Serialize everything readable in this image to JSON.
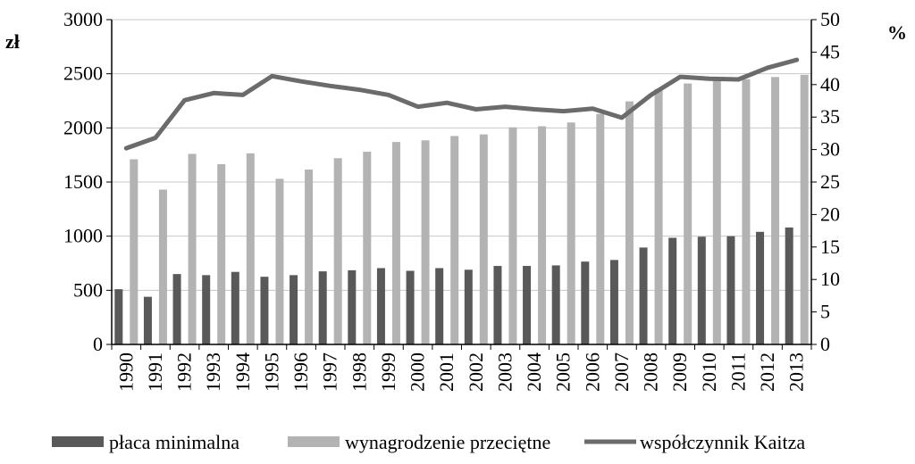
{
  "chart_data": {
    "type": "bar",
    "categories": [
      "1990",
      "1991",
      "1992",
      "1993",
      "1994",
      "1995",
      "1996",
      "1997",
      "1998",
      "1999",
      "2000",
      "2001",
      "2002",
      "2003",
      "2004",
      "2005",
      "2006",
      "2007",
      "2008",
      "2009",
      "2010",
      "2011",
      "2012",
      "2013"
    ],
    "series": [
      {
        "name": "płaca minimalna",
        "axis": "left",
        "kind": "bar",
        "color": "#595959",
        "values": [
          510,
          440,
          650,
          640,
          670,
          625,
          640,
          675,
          685,
          705,
          680,
          705,
          690,
          725,
          725,
          730,
          765,
          780,
          895,
          985,
          995,
          1000,
          1040,
          1080
        ]
      },
      {
        "name": "wynagrodzenie przeciętne",
        "axis": "left",
        "kind": "bar",
        "color": "#b3b3b3",
        "values": [
          1710,
          1430,
          1760,
          1665,
          1765,
          1530,
          1615,
          1720,
          1780,
          1870,
          1885,
          1925,
          1940,
          2005,
          2015,
          2050,
          2130,
          2245,
          2360,
          2410,
          2440,
          2450,
          2470,
          2490
        ]
      },
      {
        "name": "współczynnik Kaitza",
        "axis": "right",
        "kind": "line",
        "color": "#6b6b6b",
        "values": [
          30.2,
          31.8,
          37.6,
          38.7,
          38.4,
          41.3,
          40.5,
          39.8,
          39.2,
          38.4,
          36.6,
          37.2,
          36.2,
          36.6,
          36.2,
          35.9,
          36.3,
          34.9,
          38.4,
          41.2,
          40.9,
          40.8,
          42.6,
          43.8
        ]
      }
    ],
    "y_left": {
      "unit": "zł",
      "ylim": [
        0,
        3000
      ],
      "ticks": [
        "0",
        "500",
        "1000",
        "1500",
        "2000",
        "2500",
        "3000"
      ]
    },
    "y_right": {
      "unit": "%",
      "ylim": [
        0,
        50
      ],
      "ticks": [
        "0",
        "5",
        "10",
        "15",
        "20",
        "25",
        "30",
        "35",
        "40",
        "45",
        "50"
      ]
    },
    "grid": true,
    "legend_position": "bottom"
  }
}
